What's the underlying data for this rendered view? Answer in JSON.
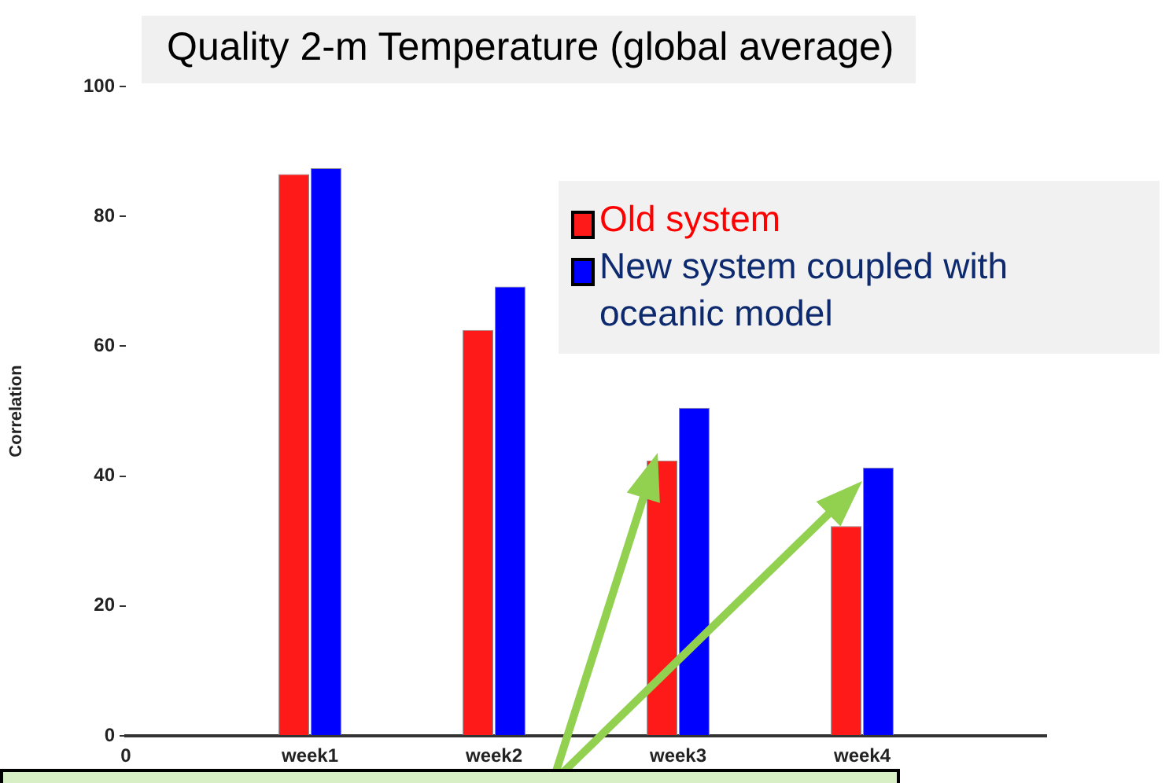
{
  "chart_data": {
    "type": "bar",
    "title": "Quality 2-m Temperature (global average)",
    "ylabel": "Correlation",
    "categories": [
      "0",
      "week1",
      "week2",
      "week3",
      "week4",
      null
    ],
    "series": [
      {
        "name": "Old system",
        "color": "#ff1a1a",
        "values": [
          null,
          86.5,
          62.5,
          42.4,
          32.3,
          null
        ]
      },
      {
        "name": "New system coupled with oceanic model",
        "color": "#0000ff",
        "values": [
          null,
          87.4,
          69.2,
          50.5,
          41.3,
          null
        ]
      }
    ],
    "ylim": [
      0,
      100
    ],
    "yticks": [
      0,
      20,
      40,
      60,
      80,
      100
    ],
    "grid": false,
    "legend": "top right"
  }
}
